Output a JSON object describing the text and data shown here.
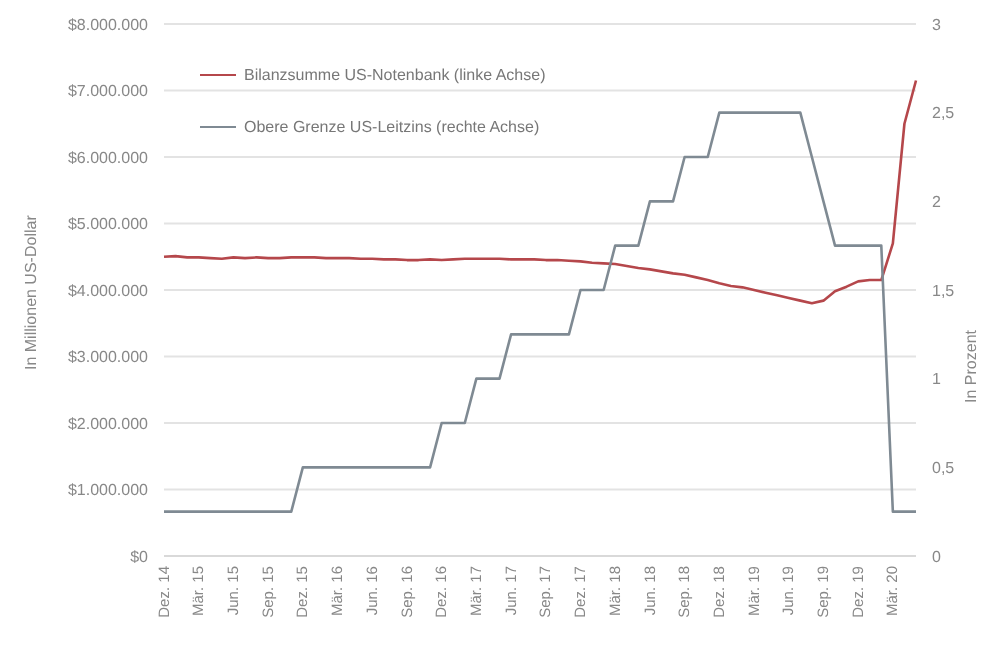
{
  "chart_data": {
    "type": "line",
    "ylabel": "In Millionen US-Dollar",
    "y2label": "In Prozent",
    "categories": [
      "Dez. 14",
      null,
      null,
      "Mär. 15",
      null,
      null,
      "Jun. 15",
      null,
      null,
      "Sep. 15",
      null,
      null,
      "Dez. 15",
      null,
      null,
      "Mär. 16",
      null,
      null,
      "Jun. 16",
      null,
      null,
      "Sep. 16",
      null,
      null,
      "Dez. 16",
      null,
      null,
      "Mär. 17",
      null,
      null,
      "Jun. 17",
      null,
      null,
      "Sep. 17",
      null,
      null,
      "Dez. 17",
      null,
      null,
      "Mär. 18",
      null,
      null,
      "Jun. 18",
      null,
      null,
      "Sep. 18",
      null,
      null,
      "Dez. 18",
      null,
      null,
      "Mär. 19",
      null,
      null,
      "Jun. 19",
      null,
      null,
      "Sep. 19",
      null,
      null,
      "Dez. 19",
      null,
      null,
      "Mär. 20",
      null,
      null
    ],
    "series": [
      {
        "name": "Bilanzsumme US-Notenbank (linke Achse)",
        "color": "#b5474b",
        "values": [
          4500000,
          4510000,
          4490000,
          4490000,
          4480000,
          4470000,
          4490000,
          4480000,
          4490000,
          4480000,
          4480000,
          4490000,
          4490000,
          4490000,
          4480000,
          4480000,
          4480000,
          4470000,
          4470000,
          4460000,
          4460000,
          4450000,
          4450000,
          4460000,
          4450000,
          4460000,
          4470000,
          4470000,
          4470000,
          4470000,
          4460000,
          4460000,
          4460000,
          4450000,
          4450000,
          4440000,
          4430000,
          4410000,
          4400000,
          4390000,
          4360000,
          4330000,
          4310000,
          4280000,
          4250000,
          4230000,
          4190000,
          4150000,
          4100000,
          4060000,
          4040000,
          4000000,
          3960000,
          3920000,
          3880000,
          3840000,
          3800000,
          3840000,
          3980000,
          4050000,
          4130000,
          4150000,
          4150000,
          4700000,
          6500000,
          7150000
        ]
      },
      {
        "name": "Obere Grenze US-Leitzins (rechte Achse)",
        "color": "#7f8a93",
        "axis": "y2",
        "values": [
          0.25,
          0.25,
          0.25,
          0.25,
          0.25,
          0.25,
          0.25,
          0.25,
          0.25,
          0.25,
          0.25,
          0.25,
          0.5,
          0.5,
          0.5,
          0.5,
          0.5,
          0.5,
          0.5,
          0.5,
          0.5,
          0.5,
          0.5,
          0.5,
          0.75,
          0.75,
          0.75,
          1,
          1,
          1,
          1.25,
          1.25,
          1.25,
          1.25,
          1.25,
          1.25,
          1.5,
          1.5,
          1.5,
          1.75,
          1.75,
          1.75,
          2,
          2,
          2,
          2.25,
          2.25,
          2.25,
          2.5,
          2.5,
          2.5,
          2.5,
          2.5,
          2.5,
          2.5,
          2.5,
          2.25,
          2,
          1.75,
          1.75,
          1.75,
          1.75,
          1.75,
          0.25,
          0.25,
          0.25
        ]
      }
    ],
    "ylim": [
      0,
      8000000
    ],
    "yticks": [
      {
        "value": 0,
        "label": "$0"
      },
      {
        "value": 1000000,
        "label": "$1.000.000"
      },
      {
        "value": 2000000,
        "label": "$2.000.000"
      },
      {
        "value": 3000000,
        "label": "$3.000.000"
      },
      {
        "value": 4000000,
        "label": "$4.000.000"
      },
      {
        "value": 5000000,
        "label": "$5.000.000"
      },
      {
        "value": 6000000,
        "label": "$6.000.000"
      },
      {
        "value": 7000000,
        "label": "$7.000.000"
      },
      {
        "value": 8000000,
        "label": "$8.000.000"
      }
    ],
    "y2lim": [
      0,
      3
    ],
    "y2ticks": [
      0,
      {
        "value": 0.5,
        "label": "0,5"
      },
      1,
      {
        "value": 1.5,
        "label": "1,5"
      },
      2,
      {
        "value": 2.5,
        "label": "2,5"
      },
      3
    ],
    "grid": "y",
    "legend": "top left",
    "marker": "none",
    "line_style": "solid"
  }
}
